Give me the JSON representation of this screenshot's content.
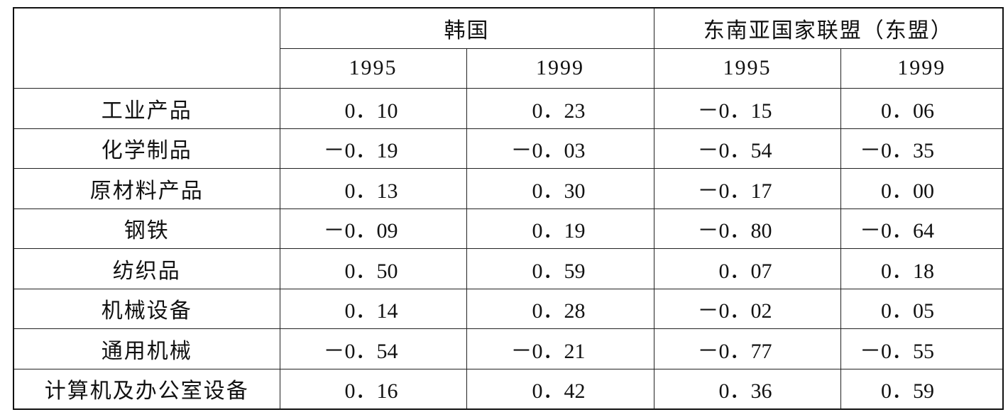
{
  "table": {
    "header": {
      "groups": [
        "韩国",
        "东南亚国家联盟（东盟）"
      ],
      "years": [
        "1995",
        "1999",
        "1995",
        "1999"
      ]
    },
    "rows": [
      [
        "工业产品",
        "0．10",
        "0．23",
        "－0．15",
        "0．06"
      ],
      [
        "化学制品",
        "－0．19",
        "－0．03",
        "－0．54",
        "－0．35"
      ],
      [
        "原材料产品",
        "0．13",
        "0．30",
        "－0．17",
        "0．00"
      ],
      [
        "钢铁",
        "－0．09",
        "0．19",
        "－0．80",
        "－0．64"
      ],
      [
        "纺织品",
        "0．50",
        "0．59",
        "0．07",
        "0．18"
      ],
      [
        "机械设备",
        "0．14",
        "0．28",
        "－0．02",
        "0．05"
      ],
      [
        "通用机械",
        "－0．54",
        "－0．21",
        "－0．77",
        "－0．55"
      ],
      [
        "计算机及办公室设备",
        "0．16",
        "0．42",
        "0．36",
        "0．59"
      ]
    ]
  }
}
